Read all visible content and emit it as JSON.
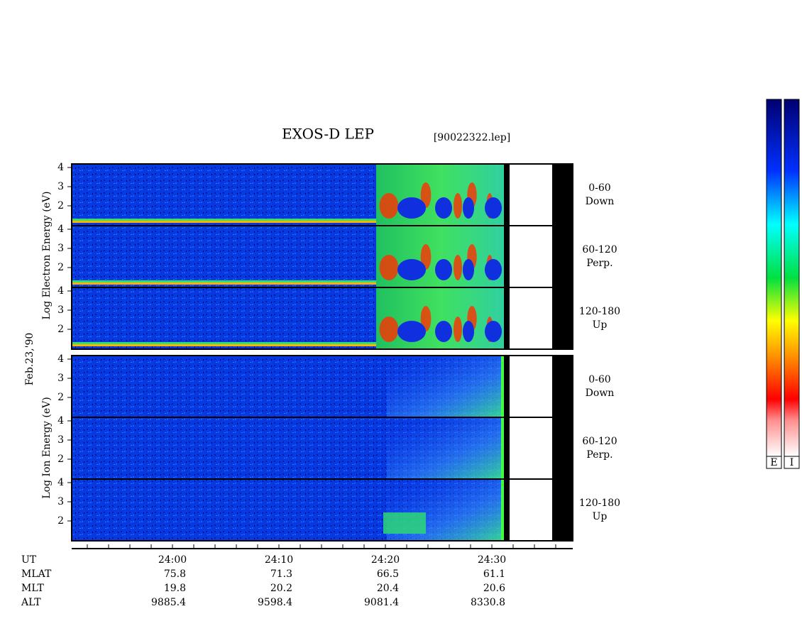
{
  "header": {
    "title": "EXOS-D LEP",
    "file": "[90022322.lep]"
  },
  "date": "Feb.23,'90",
  "axis_labels": {
    "electron": "Log  Electron  Energy (eV)",
    "ion": "Log  Ion  Energy (eV)"
  },
  "y_tick_labels": [
    "4",
    "3",
    "2"
  ],
  "panels": [
    {
      "label": "0-60",
      "sublabel": "Down"
    },
    {
      "label": "60-120",
      "sublabel": "Perp."
    },
    {
      "label": "120-180",
      "sublabel": "Up"
    }
  ],
  "time_ticks": [
    "24:00",
    "24:10",
    "24:20",
    "24:30"
  ],
  "ephemeris": {
    "rows": [
      {
        "label": "UT",
        "values": []
      },
      {
        "label": "MLAT",
        "values": [
          "75.8",
          "71.3",
          "66.5",
          "61.1"
        ]
      },
      {
        "label": "MLT",
        "values": [
          "19.8",
          "20.2",
          "20.4",
          "20.6"
        ]
      },
      {
        "label": "ALT",
        "values": [
          "9885.4",
          "9598.4",
          "9081.4",
          "8330.8"
        ]
      }
    ]
  },
  "colorbar_labels": [
    "E",
    "I"
  ]
}
